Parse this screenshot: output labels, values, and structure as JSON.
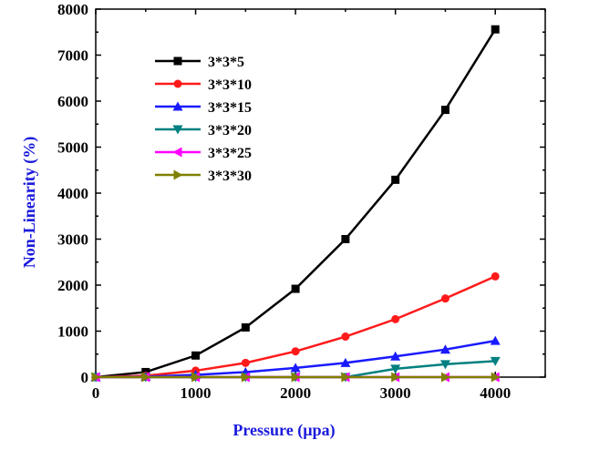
{
  "chart_data": {
    "type": "line",
    "title": "",
    "xlabel": "Pressure (µpa)",
    "ylabel": "Non-Linearity (%)",
    "xlim": [
      0,
      4500
    ],
    "ylim": [
      0,
      8000
    ],
    "x_ticks": [
      0,
      1000,
      2000,
      3000,
      4000
    ],
    "y_ticks": [
      0,
      1000,
      2000,
      3000,
      4000,
      5000,
      6000,
      7000,
      8000
    ],
    "grid": false,
    "legend_position": "top-left",
    "x": [
      0,
      500,
      1000,
      1500,
      2000,
      2500,
      3000,
      3500,
      4000
    ],
    "series": [
      {
        "name": "3*3*5",
        "color": "#000000",
        "marker": "square",
        "values": [
          0,
          110,
          470,
          1080,
          1920,
          3000,
          4290,
          5810,
          7560
        ]
      },
      {
        "name": "3*3*10",
        "color": "#ff1a1a",
        "marker": "circle",
        "values": [
          0,
          30,
          140,
          310,
          560,
          880,
          1260,
          1710,
          2190
        ]
      },
      {
        "name": "3*3*15",
        "color": "#1a1aff",
        "marker": "triangle-up",
        "values": [
          0,
          10,
          50,
          110,
          200,
          310,
          450,
          600,
          790
        ]
      },
      {
        "name": "3*3*20",
        "color": "#008080",
        "marker": "triangle-down",
        "values": [
          0,
          0,
          0,
          0,
          0,
          0,
          180,
          280,
          350
        ]
      },
      {
        "name": "3*3*25",
        "color": "#ff00ff",
        "marker": "triangle-left",
        "values": [
          0,
          0,
          0,
          0,
          0,
          0,
          0,
          0,
          0
        ]
      },
      {
        "name": "3*3*30",
        "color": "#808000",
        "marker": "triangle-right",
        "values": [
          0,
          0,
          0,
          0,
          0,
          0,
          0,
          0,
          0
        ]
      }
    ]
  }
}
